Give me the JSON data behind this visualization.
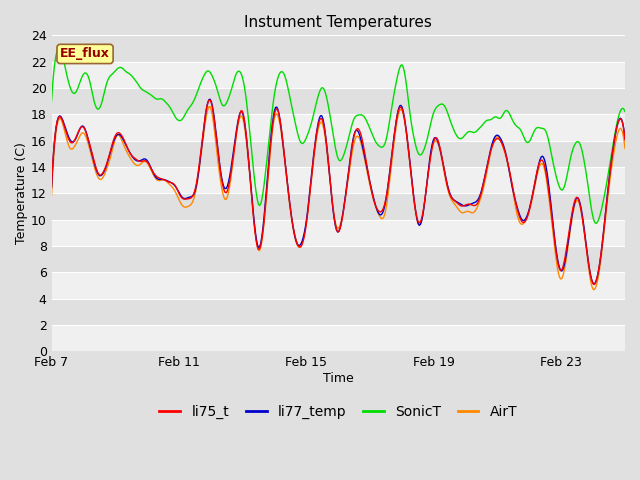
{
  "title": "Instument Temperatures",
  "xlabel": "Time",
  "ylabel": "Temperature (C)",
  "ylim": [
    0,
    24
  ],
  "yticks": [
    0,
    2,
    4,
    6,
    8,
    10,
    12,
    14,
    16,
    18,
    20,
    22,
    24
  ],
  "xtick_labels": [
    "Feb 7",
    "Feb 11",
    "Feb 15",
    "Feb 19",
    "Feb 23"
  ],
  "xtick_days": [
    0,
    4,
    8,
    12,
    16
  ],
  "total_days": 18,
  "n_points": 500,
  "colors": {
    "li75_t": "#ff0000",
    "li77_temp": "#0000cc",
    "SonicT": "#00dd00",
    "AirT": "#ff8800"
  },
  "line_width": 1.0,
  "fig_bg_color": "#e0e0e0",
  "plot_bg_color": "#e8e8e8",
  "grid_color": "#ffffff",
  "annotation_text": "EE_flux",
  "annotation_fg": "#990000",
  "annotation_bg": "#ffff99",
  "annotation_border": "#996633"
}
